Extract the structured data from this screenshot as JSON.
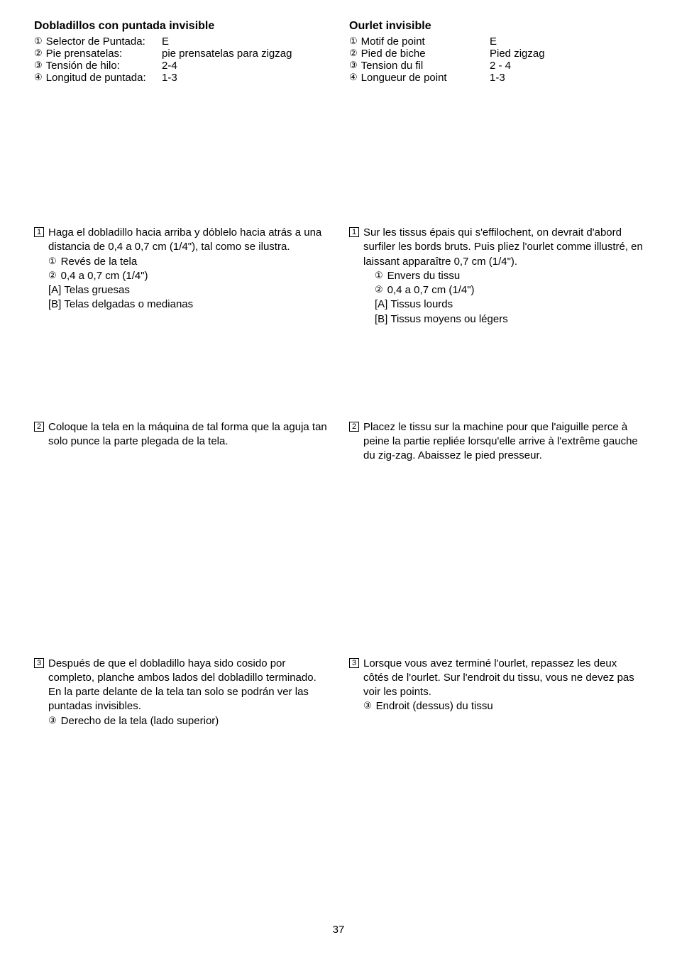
{
  "pageNumber": "37",
  "left": {
    "title": "Dobladillos con puntada invisible",
    "settings": [
      {
        "num": "①",
        "label": "Selector de Puntada:",
        "value": "E"
      },
      {
        "num": "②",
        "label": "Pie prensatelas:",
        "value": "pie prensatelas para zigzag"
      },
      {
        "num": "③",
        "label": "Tensión de hilo:",
        "value": "2-4"
      },
      {
        "num": "④",
        "label": "Longitud de puntada:",
        "value": "1-3"
      }
    ],
    "step1": {
      "num": "1",
      "text": "Haga el dobladillo hacia arriba y dóblelo hacia atrás a una distancia de 0,4 a 0,7 cm (1/4\"), tal como se ilustra.",
      "sub": [
        {
          "mark": "①",
          "text": "Revés de la tela"
        },
        {
          "mark": "②",
          "text": "0,4 a 0,7 cm (1/4\")"
        },
        {
          "mark": "[A]",
          "text": "Telas gruesas"
        },
        {
          "mark": "[B]",
          "text": "Telas delgadas o medianas"
        }
      ]
    },
    "step2": {
      "num": "2",
      "text": "Coloque la tela en la máquina de tal forma que la aguja tan solo punce la parte plegada de la tela."
    },
    "step3": {
      "num": "3",
      "text1": "Después de que el dobladillo haya sido cosido por completo, planche ambos lados del dobladillo terminado.",
      "text2": "En la parte delante de la tela tan solo se podrán ver las puntadas invisibles.",
      "sub": {
        "mark": "③",
        "text": "Derecho de la tela (lado superior)"
      }
    }
  },
  "right": {
    "title": "Ourlet invisible",
    "settings": [
      {
        "num": "①",
        "label": "Motif de point",
        "value": "E"
      },
      {
        "num": "②",
        "label": "Pied de biche",
        "value": "Pied zigzag"
      },
      {
        "num": "③",
        "label": "Tension du fil",
        "value": "2 - 4"
      },
      {
        "num": "④",
        "label": "Longueur de point",
        "value": "1-3"
      }
    ],
    "step1": {
      "num": "1",
      "text": "Sur les tissus épais qui s'effilochent, on devrait d'abord surfiler les bords bruts. Puis pliez l'ourlet comme illustré, en laissant apparaître 0,7 cm (1/4\").",
      "sub": [
        {
          "mark": "①",
          "text": "Envers du tissu"
        },
        {
          "mark": "②",
          "text": "0,4 a 0,7 cm (1/4\")"
        },
        {
          "mark": "[A]",
          "text": "Tissus lourds"
        },
        {
          "mark": "[B]",
          "text": "Tissus moyens ou légers"
        }
      ]
    },
    "step2": {
      "num": "2",
      "text": "Placez le tissu sur la machine pour que l'aiguille perce à peine la partie repliée lorsqu'elle arrive à l'extrême gauche du zig-zag. Abaissez le pied presseur."
    },
    "step3": {
      "num": "3",
      "text": "Lorsque vous avez terminé l'ourlet, repassez les deux côtés de l'ourlet. Sur l'endroit du tissu, vous ne devez pas voir les points.",
      "sub": {
        "mark": "③",
        "text": "Endroit (dessus) du tissu"
      }
    }
  }
}
